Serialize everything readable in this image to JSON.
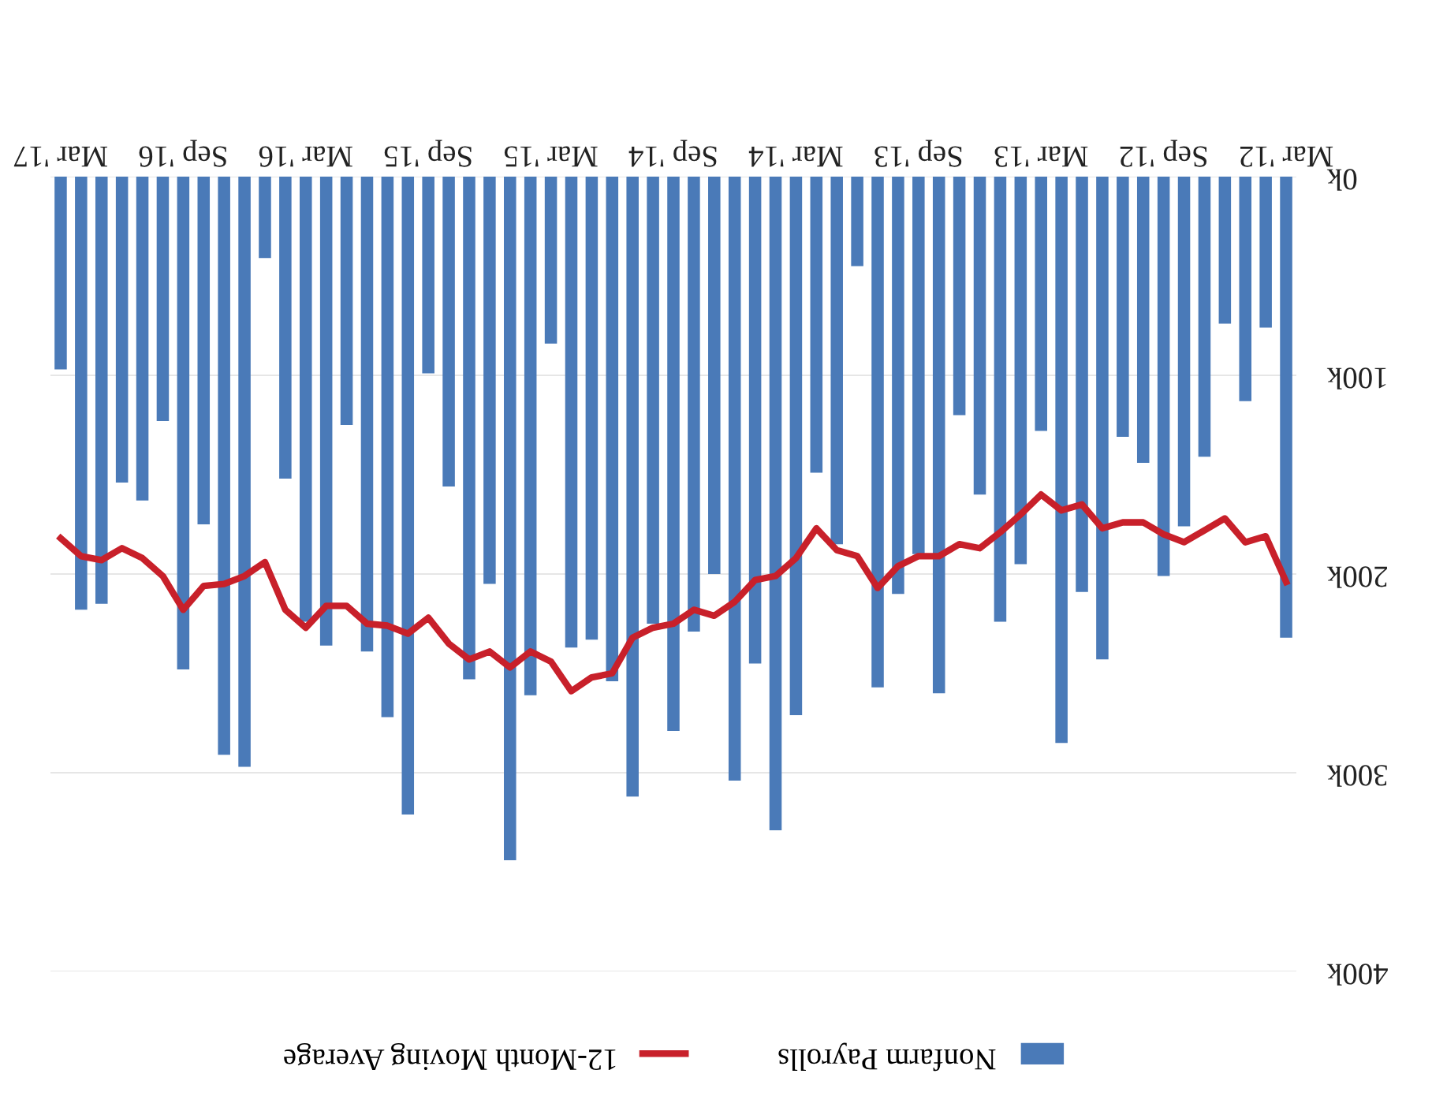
{
  "chart_data": {
    "type": "bar",
    "categories": [
      "Mar '17",
      null,
      null,
      null,
      null,
      null,
      "Sep '16",
      null,
      null,
      null,
      null,
      null,
      "Mar '16",
      null,
      null,
      null,
      null,
      null,
      "Sep '15",
      null,
      null,
      null,
      null,
      null,
      "Mar '15",
      null,
      null,
      null,
      null,
      null,
      "Sep '14",
      null,
      null,
      null,
      null,
      null,
      "Mar '14",
      null,
      null,
      null,
      null,
      null,
      "Sep '13",
      null,
      null,
      null,
      null,
      null,
      "Mar '13",
      null,
      null,
      null,
      null,
      null,
      "Sep '12",
      null,
      null,
      null,
      null,
      null,
      "Mar '12"
    ],
    "series": [
      {
        "name": "Nonfarm Payrolls",
        "color": "#4a7ab8",
        "values": [
          97,
          218,
          215,
          154,
          163,
          123,
          248,
          175,
          291,
          297,
          41,
          152,
          224,
          236,
          125,
          239,
          272,
          321,
          99,
          156,
          253,
          205,
          344,
          261,
          84,
          237,
          233,
          254,
          312,
          225,
          279,
          229,
          200,
          304,
          245,
          329,
          271,
          149,
          185,
          45,
          257,
          210,
          190,
          260,
          120,
          160,
          224,
          195,
          128,
          285,
          209,
          243,
          131,
          144,
          201,
          176,
          141,
          74,
          113,
          76,
          232
        ]
      },
      {
        "name": "12-Month Moving Average",
        "type": "line",
        "color": "#c8202a",
        "values": [
          182,
          191,
          193,
          187,
          192,
          201,
          218,
          206,
          205,
          201,
          194,
          218,
          227,
          216,
          216,
          225,
          226,
          230,
          222,
          235,
          243,
          239,
          247,
          239,
          244,
          259,
          252,
          250,
          232,
          227,
          225,
          218,
          221,
          214,
          203,
          201,
          192,
          177,
          188,
          191,
          207,
          196,
          191,
          191,
          185,
          187,
          179,
          170,
          160,
          168,
          165,
          177,
          174,
          174,
          180,
          184,
          178,
          172,
          184,
          181,
          204
        ]
      }
    ],
    "ylim": [
      400,
      0
    ],
    "yticks": [
      {
        "value": 0,
        "label": "0k"
      },
      {
        "value": 100,
        "label": "100k"
      },
      {
        "value": 200,
        "label": "200k"
      },
      {
        "value": 300,
        "label": "300k"
      },
      {
        "value": 400,
        "label": "400k"
      }
    ],
    "grid": "y",
    "legend": "bottom"
  }
}
